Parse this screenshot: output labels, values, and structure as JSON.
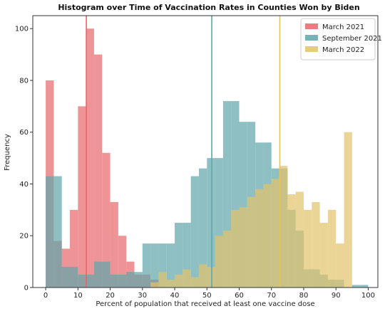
{
  "chart_data": {
    "type": "histogram",
    "title": "Histogram over Time of Vaccination Rates in Counties Won by Biden",
    "xlabel": "Percent of population that received at least one vaccine dose",
    "ylabel": "Frequency",
    "xlim": [
      -4,
      103
    ],
    "ylim": [
      0,
      105
    ],
    "xticks": [
      0,
      10,
      20,
      30,
      40,
      50,
      60,
      70,
      80,
      90,
      100
    ],
    "yticks": [
      0,
      20,
      40,
      60,
      80,
      100
    ],
    "bin_width": 2.5,
    "legend_position": "top-right",
    "series": [
      {
        "name": "March 2021",
        "color": "#e8666a",
        "mean": 12.6,
        "bins": [
          {
            "x0": 0,
            "value": 80
          },
          {
            "x0": 2.5,
            "value": 18
          },
          {
            "x0": 5,
            "value": 15
          },
          {
            "x0": 7.5,
            "value": 30
          },
          {
            "x0": 10,
            "value": 70
          },
          {
            "x0": 12.5,
            "value": 100
          },
          {
            "x0": 15,
            "value": 90
          },
          {
            "x0": 17.5,
            "value": 52
          },
          {
            "x0": 20,
            "value": 33
          },
          {
            "x0": 22.5,
            "value": 20
          },
          {
            "x0": 25,
            "value": 10
          },
          {
            "x0": 27.5,
            "value": 5
          },
          {
            "x0": 30,
            "value": 5
          },
          {
            "x0": 32.5,
            "value": 3
          }
        ]
      },
      {
        "name": "September 2021",
        "color": "#5ea5a9",
        "mean": 51.5,
        "bins": [
          {
            "x0": 0,
            "value": 43
          },
          {
            "x0": 2.5,
            "value": 43
          },
          {
            "x0": 5,
            "value": 8
          },
          {
            "x0": 7.5,
            "value": 8
          },
          {
            "x0": 10,
            "value": 5
          },
          {
            "x0": 12.5,
            "value": 5
          },
          {
            "x0": 15,
            "value": 10
          },
          {
            "x0": 17.5,
            "value": 10
          },
          {
            "x0": 20,
            "value": 5
          },
          {
            "x0": 22.5,
            "value": 5
          },
          {
            "x0": 25,
            "value": 6
          },
          {
            "x0": 27.5,
            "value": 6
          },
          {
            "x0": 30,
            "value": 17
          },
          {
            "x0": 32.5,
            "value": 17
          },
          {
            "x0": 35,
            "value": 17
          },
          {
            "x0": 37.5,
            "value": 17
          },
          {
            "x0": 40,
            "value": 25
          },
          {
            "x0": 42.5,
            "value": 25
          },
          {
            "x0": 45,
            "value": 43
          },
          {
            "x0": 47.5,
            "value": 46
          },
          {
            "x0": 50,
            "value": 50
          },
          {
            "x0": 52.5,
            "value": 50
          },
          {
            "x0": 55,
            "value": 72
          },
          {
            "x0": 57.5,
            "value": 72
          },
          {
            "x0": 60,
            "value": 64
          },
          {
            "x0": 62.5,
            "value": 64
          },
          {
            "x0": 65,
            "value": 56
          },
          {
            "x0": 67.5,
            "value": 56
          },
          {
            "x0": 70,
            "value": 46
          },
          {
            "x0": 72.5,
            "value": 46
          },
          {
            "x0": 75,
            "value": 30
          },
          {
            "x0": 77.5,
            "value": 22
          },
          {
            "x0": 80,
            "value": 7
          },
          {
            "x0": 82.5,
            "value": 7
          },
          {
            "x0": 85,
            "value": 5
          },
          {
            "x0": 87.5,
            "value": 3
          },
          {
            "x0": 90,
            "value": 3
          },
          {
            "x0": 92.5,
            "value": 0
          },
          {
            "x0": 95,
            "value": 1
          },
          {
            "x0": 97.5,
            "value": 1
          }
        ]
      },
      {
        "name": "March 2022",
        "color": "#e3c36a",
        "mean": 72.6,
        "bins": [
          {
            "x0": 32.5,
            "value": 2
          },
          {
            "x0": 35,
            "value": 6
          },
          {
            "x0": 37.5,
            "value": 3
          },
          {
            "x0": 40,
            "value": 5
          },
          {
            "x0": 42.5,
            "value": 7
          },
          {
            "x0": 45,
            "value": 4
          },
          {
            "x0": 47.5,
            "value": 9
          },
          {
            "x0": 50,
            "value": 8
          },
          {
            "x0": 52.5,
            "value": 20
          },
          {
            "x0": 55,
            "value": 22
          },
          {
            "x0": 57.5,
            "value": 30
          },
          {
            "x0": 60,
            "value": 31
          },
          {
            "x0": 62.5,
            "value": 35
          },
          {
            "x0": 65,
            "value": 38
          },
          {
            "x0": 67.5,
            "value": 40
          },
          {
            "x0": 70,
            "value": 42
          },
          {
            "x0": 72.5,
            "value": 47
          },
          {
            "x0": 75,
            "value": 36
          },
          {
            "x0": 77.5,
            "value": 37
          },
          {
            "x0": 80,
            "value": 30
          },
          {
            "x0": 82.5,
            "value": 33
          },
          {
            "x0": 85,
            "value": 25
          },
          {
            "x0": 87.5,
            "value": 30
          },
          {
            "x0": 90,
            "value": 17
          },
          {
            "x0": 92.5,
            "value": 60
          }
        ]
      }
    ]
  }
}
